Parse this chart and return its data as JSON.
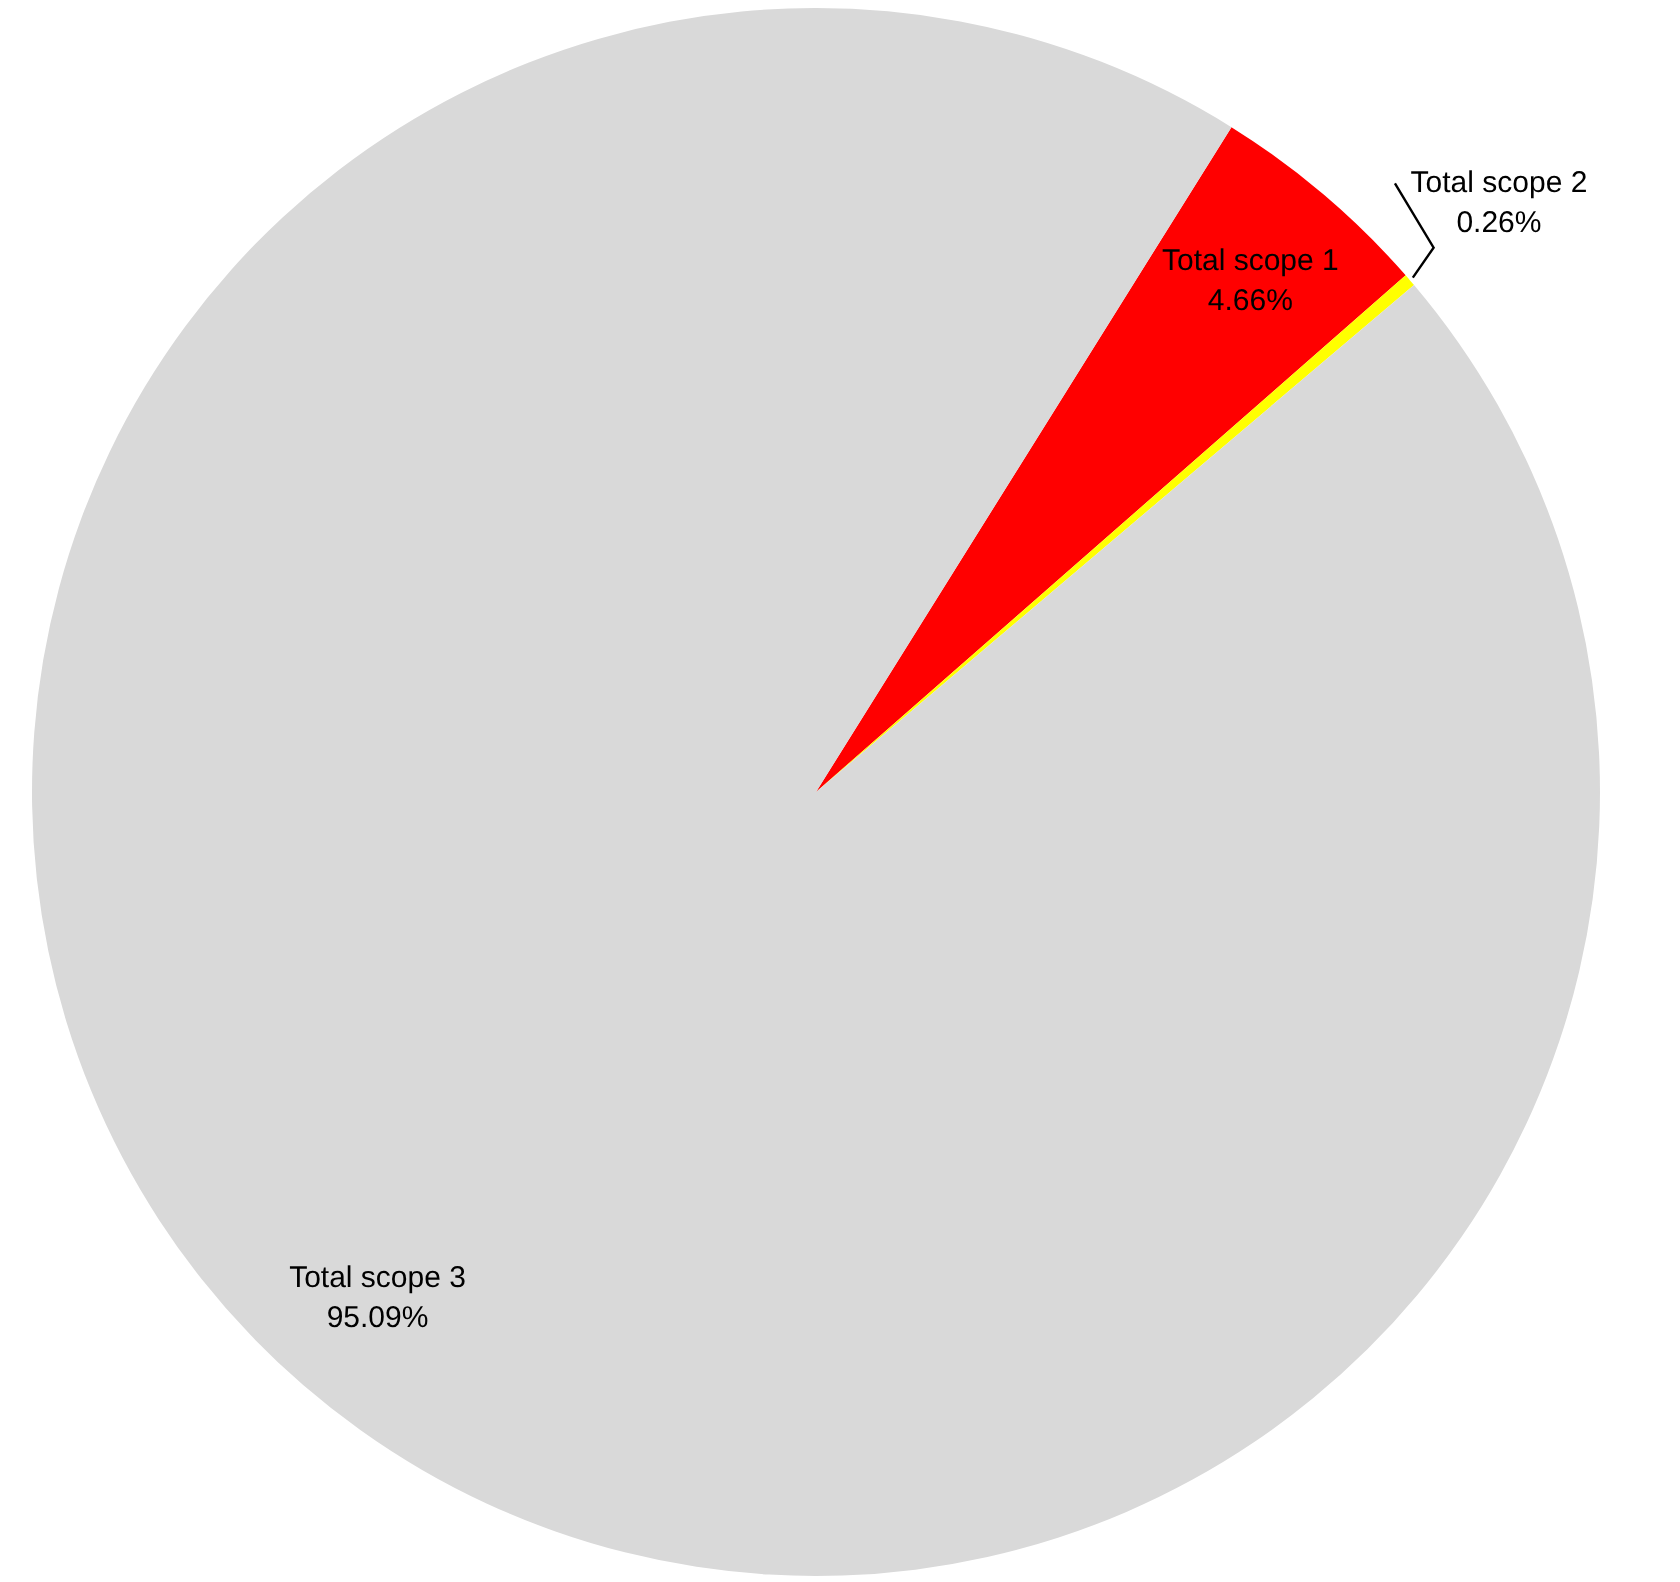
{
  "chart_data": {
    "type": "pie",
    "categories": [
      "Total scope 1",
      "Total scope 2",
      "Total scope 3"
    ],
    "values": [
      4.66,
      0.26,
      95.09
    ],
    "colors": [
      "#ff0000",
      "#ffff00",
      "#d9d9d9"
    ],
    "value_labels": [
      "4.66%",
      "0.26%",
      "95.09%"
    ],
    "legend": false
  }
}
